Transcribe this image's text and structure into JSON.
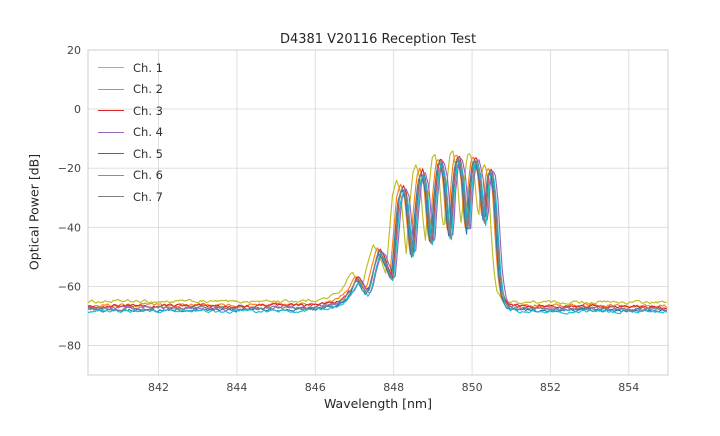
{
  "chart_data": {
    "type": "line",
    "title": "D4381 V20116 Reception Test",
    "xlabel": "Wavelength [nm]",
    "ylabel": "Optical Power [dB]",
    "xlim": [
      840.2,
      855.0
    ],
    "ylim": [
      -90,
      20
    ],
    "xticks": [
      842,
      844,
      846,
      848,
      850,
      852,
      854
    ],
    "yticks": [
      20,
      0,
      -20,
      -40,
      -60,
      -80
    ],
    "grid": true,
    "legend_position": "upper left",
    "noise_floor_db": -67,
    "base_shape": [
      [
        840.2,
        -67.2
      ],
      [
        841.0,
        -67.1
      ],
      [
        842.0,
        -67.2
      ],
      [
        843.0,
        -67.1
      ],
      [
        844.0,
        -67.2
      ],
      [
        845.0,
        -67.0
      ],
      [
        845.8,
        -66.9
      ],
      [
        846.2,
        -66.6
      ],
      [
        846.5,
        -65.8
      ],
      [
        846.75,
        -63.8
      ],
      [
        846.9,
        -61.5
      ],
      [
        847.02,
        -58.0
      ],
      [
        847.1,
        -57.3
      ],
      [
        847.2,
        -60.0
      ],
      [
        847.3,
        -62.0
      ],
      [
        847.38,
        -60.5
      ],
      [
        847.5,
        -53.5
      ],
      [
        847.62,
        -47.8
      ],
      [
        847.72,
        -49.5
      ],
      [
        847.82,
        -53.0
      ],
      [
        847.95,
        -57.5
      ],
      [
        848.02,
        -47.0
      ],
      [
        848.12,
        -31.0
      ],
      [
        848.22,
        -26.2
      ],
      [
        848.32,
        -29.5
      ],
      [
        848.42,
        -44.0
      ],
      [
        848.47,
        -51.0
      ],
      [
        848.54,
        -37.0
      ],
      [
        848.64,
        -23.5
      ],
      [
        848.72,
        -20.8
      ],
      [
        848.82,
        -26.0
      ],
      [
        848.9,
        -40.0
      ],
      [
        848.96,
        -46.5
      ],
      [
        849.04,
        -30.0
      ],
      [
        849.13,
        -18.5
      ],
      [
        849.2,
        -17.2
      ],
      [
        849.3,
        -23.5
      ],
      [
        849.38,
        -38.0
      ],
      [
        849.44,
        -43.5
      ],
      [
        849.5,
        -28.0
      ],
      [
        849.58,
        -17.5
      ],
      [
        849.66,
        -16.2
      ],
      [
        849.76,
        -23.0
      ],
      [
        849.83,
        -36.0
      ],
      [
        849.88,
        -41.5
      ],
      [
        849.95,
        -26.0
      ],
      [
        850.03,
        -17.5
      ],
      [
        850.1,
        -16.8
      ],
      [
        850.2,
        -23.0
      ],
      [
        850.27,
        -34.0
      ],
      [
        850.32,
        -39.0
      ],
      [
        850.38,
        -25.0
      ],
      [
        850.45,
        -20.3
      ],
      [
        850.52,
        -22.5
      ],
      [
        850.58,
        -30.0
      ],
      [
        850.64,
        -44.0
      ],
      [
        850.7,
        -56.0
      ],
      [
        850.78,
        -63.5
      ],
      [
        850.9,
        -66.5
      ],
      [
        851.2,
        -67.3
      ],
      [
        852.0,
        -67.4
      ],
      [
        853.0,
        -67.3
      ],
      [
        854.0,
        -67.4
      ],
      [
        855.0,
        -67.5
      ]
    ],
    "series": [
      {
        "name": "Ch. 1",
        "color": "#bcbd22",
        "wavelength_shift": -0.15,
        "power_offset": 2.0
      },
      {
        "name": "Ch. 2",
        "color": "#ff7f0e",
        "wavelength_shift": -0.05,
        "power_offset": 0.8
      },
      {
        "name": "Ch. 3",
        "color": "#d62728",
        "wavelength_shift": 0.02,
        "power_offset": 0.5
      },
      {
        "name": "Ch. 4",
        "color": "#9467bd",
        "wavelength_shift": 0.08,
        "power_offset": -0.2
      },
      {
        "name": "Ch. 5",
        "color": "#1f77b4",
        "wavelength_shift": -0.02,
        "power_offset": -0.8
      },
      {
        "name": "Ch. 6",
        "color": "#17becf",
        "wavelength_shift": 0.04,
        "power_offset": -1.2
      },
      {
        "name": "Ch. 7",
        "color": "#7f7f7f",
        "wavelength_shift": 0.0,
        "power_offset": -0.3
      }
    ],
    "colors": {
      "grid": "#dcdcdc",
      "border": "#cfcfcf",
      "tick_label": "#444444"
    }
  }
}
